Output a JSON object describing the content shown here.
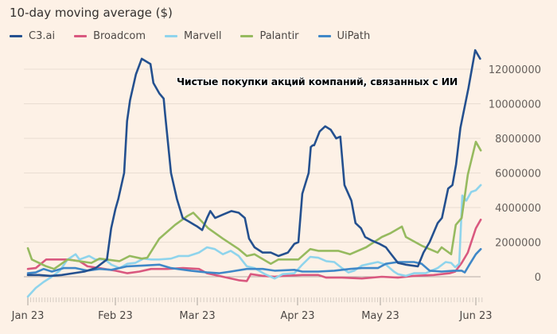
{
  "chart_data": {
    "type": "line",
    "title": "10-day moving average ($)",
    "annotation": "Чистые покупки акций компаний, связанных с ИИ",
    "xlabel": "",
    "ylabel": "",
    "x_unit": "days since Jan 1 2023",
    "x_ticks": [
      {
        "label": "Jan 23",
        "day": 0
      },
      {
        "label": "Feb 23",
        "day": 31
      },
      {
        "label": "Mar 23",
        "day": 59
      },
      {
        "label": "Apr 23",
        "day": 90
      },
      {
        "label": "May 23",
        "day": 120
      },
      {
        "label": "Jun 23",
        "day": 151
      }
    ],
    "y_ticks": [
      0,
      2000000,
      4000000,
      6000000,
      8000000,
      10000000,
      12000000
    ],
    "y_tick_labels": [
      "0",
      "2000000",
      "4000000",
      "6000000",
      "8000000",
      "10000000",
      "12000000"
    ],
    "ylim": [
      -1400000,
      13300000
    ],
    "grid": true,
    "legend_position": "top-left",
    "series": [
      {
        "name": "C3.ai",
        "color": "#24508f",
        "points": [
          [
            0,
            0.1
          ],
          [
            4,
            0.1
          ],
          [
            8,
            0.05
          ],
          [
            12,
            0.1
          ],
          [
            16,
            0.2
          ],
          [
            20,
            0.3
          ],
          [
            24,
            0.5
          ],
          [
            28,
            1.0
          ],
          [
            29.5,
            2.8
          ],
          [
            31,
            3.9
          ],
          [
            32,
            4.5
          ],
          [
            34,
            6.0
          ],
          [
            35,
            9.0
          ],
          [
            36,
            10.2
          ],
          [
            38,
            11.7
          ],
          [
            40,
            12.6
          ],
          [
            43,
            12.3
          ],
          [
            44,
            11.2
          ],
          [
            46,
            10.6
          ],
          [
            47.5,
            10.3
          ],
          [
            48,
            9.4
          ],
          [
            50,
            6.0
          ],
          [
            52,
            4.5
          ],
          [
            54,
            3.4
          ],
          [
            56,
            3.2
          ],
          [
            58,
            3.0
          ],
          [
            59,
            2.9
          ],
          [
            60.5,
            2.7
          ],
          [
            62,
            3.4
          ],
          [
            63,
            3.8
          ],
          [
            64.5,
            3.4
          ],
          [
            67,
            3.6
          ],
          [
            69.5,
            3.8
          ],
          [
            71.8,
            3.7
          ],
          [
            73.7,
            3.4
          ],
          [
            75,
            2.2
          ],
          [
            76.7,
            1.7
          ],
          [
            79.2,
            1.4
          ],
          [
            81.7,
            1.4
          ],
          [
            84.1,
            1.2
          ],
          [
            87,
            1.4
          ],
          [
            89,
            1.9
          ],
          [
            90.3,
            2.0
          ],
          [
            91.7,
            4.8
          ],
          [
            94,
            6.0
          ],
          [
            94.8,
            7.5
          ],
          [
            96,
            7.6
          ],
          [
            98,
            8.4
          ],
          [
            95.5,
            7.6
          ],
          [
            100,
            8.7
          ],
          [
            102,
            8.5
          ],
          [
            104,
            8.0
          ],
          [
            105.5,
            8.1
          ],
          [
            107,
            5.3
          ],
          [
            109.5,
            4.4
          ],
          [
            111,
            3.1
          ],
          [
            113,
            2.8
          ],
          [
            114.5,
            2.3
          ],
          [
            116.8,
            2.1
          ],
          [
            119.7,
            1.9
          ],
          [
            121.8,
            1.7
          ],
          [
            123.1,
            1.4
          ],
          [
            125.7,
            0.8
          ],
          [
            128.3,
            0.7
          ],
          [
            132.2,
            0.6
          ],
          [
            134,
            1.4
          ],
          [
            136,
            2.0
          ],
          [
            138.6,
            3.1
          ],
          [
            140,
            3.4
          ],
          [
            142,
            5.1
          ],
          [
            143.4,
            5.3
          ],
          [
            144.6,
            6.5
          ],
          [
            146,
            8.6
          ],
          [
            148.6,
            10.9
          ],
          [
            150.8,
            13.1
          ],
          [
            152.4,
            12.6
          ]
        ]
      },
      {
        "name": "Broadcom",
        "color": "#d9587f",
        "points": [
          [
            0,
            0.45
          ],
          [
            2.8,
            0.5
          ],
          [
            6.5,
            1.0
          ],
          [
            9.9,
            1.0
          ],
          [
            14.1,
            1.0
          ],
          [
            18.3,
            0.9
          ],
          [
            21.1,
            0.6
          ],
          [
            25.4,
            0.5
          ],
          [
            31,
            0.35
          ],
          [
            35.1,
            0.2
          ],
          [
            39.2,
            0.3
          ],
          [
            43.2,
            0.45
          ],
          [
            48.7,
            0.45
          ],
          [
            54.1,
            0.5
          ],
          [
            59.5,
            0.45
          ],
          [
            62,
            0.2
          ],
          [
            66.9,
            0.0
          ],
          [
            71.8,
            -0.2
          ],
          [
            74.3,
            -0.25
          ],
          [
            75.5,
            0.15
          ],
          [
            79.2,
            0.05
          ],
          [
            82.9,
            0.0
          ],
          [
            85.4,
            0.05
          ],
          [
            91.7,
            0.1
          ],
          [
            97.5,
            0.1
          ],
          [
            100.4,
            -0.05
          ],
          [
            106.1,
            -0.05
          ],
          [
            113.3,
            -0.1
          ],
          [
            120.5,
            0.0
          ],
          [
            125.7,
            -0.05
          ],
          [
            130.9,
            0.05
          ],
          [
            137.3,
            0.1
          ],
          [
            142.5,
            0.2
          ],
          [
            144.3,
            0.3
          ],
          [
            146.4,
            0.8
          ],
          [
            148.4,
            1.4
          ],
          [
            151,
            2.8
          ],
          [
            152.6,
            3.3
          ]
        ]
      },
      {
        "name": "Marvell",
        "color": "#8fd4ec",
        "points": [
          [
            0,
            -1.15
          ],
          [
            2.8,
            -0.65
          ],
          [
            5.6,
            -0.3
          ],
          [
            8.5,
            0.0
          ],
          [
            11.3,
            0.35
          ],
          [
            14.1,
            1.0
          ],
          [
            16.9,
            1.3
          ],
          [
            18.3,
            1.0
          ],
          [
            21.7,
            1.2
          ],
          [
            23.9,
            1.0
          ],
          [
            27.3,
            1.0
          ],
          [
            29.6,
            0.7
          ],
          [
            32.4,
            0.5
          ],
          [
            35.1,
            0.75
          ],
          [
            37.8,
            0.8
          ],
          [
            40.6,
            1.05
          ],
          [
            43.2,
            1.0
          ],
          [
            45.9,
            1.0
          ],
          [
            50,
            1.05
          ],
          [
            52.7,
            1.2
          ],
          [
            56,
            1.2
          ],
          [
            59.5,
            1.4
          ],
          [
            62,
            1.7
          ],
          [
            64.4,
            1.6
          ],
          [
            66.9,
            1.3
          ],
          [
            69.3,
            1.5
          ],
          [
            71.8,
            1.2
          ],
          [
            74.3,
            0.6
          ],
          [
            76.7,
            0.5
          ],
          [
            79.9,
            0.15
          ],
          [
            82.9,
            -0.1
          ],
          [
            85.4,
            0.15
          ],
          [
            89,
            0.2
          ],
          [
            91.7,
            0.7
          ],
          [
            94.6,
            1.15
          ],
          [
            97.5,
            1.1
          ],
          [
            100.4,
            0.9
          ],
          [
            103.3,
            0.85
          ],
          [
            106.1,
            0.5
          ],
          [
            108.4,
            0.25
          ],
          [
            110.5,
            0.35
          ],
          [
            113.3,
            0.65
          ],
          [
            116.2,
            0.75
          ],
          [
            119.1,
            0.85
          ],
          [
            121.8,
            0.7
          ],
          [
            124.4,
            0.3
          ],
          [
            125.7,
            0.15
          ],
          [
            128.3,
            0.05
          ],
          [
            130.9,
            0.2
          ],
          [
            134.7,
            0.2
          ],
          [
            138.6,
            0.5
          ],
          [
            141.2,
            0.85
          ],
          [
            143,
            0.8
          ],
          [
            144.3,
            0.55
          ],
          [
            145.6,
            0.75
          ],
          [
            146.6,
            4.7
          ],
          [
            147.9,
            4.4
          ],
          [
            149.5,
            4.9
          ],
          [
            151,
            5.0
          ],
          [
            152.6,
            5.3
          ]
        ]
      },
      {
        "name": "Palantir",
        "color": "#96ba5f",
        "points": [
          [
            0,
            1.65
          ],
          [
            1.4,
            1.0
          ],
          [
            6.5,
            0.6
          ],
          [
            9.3,
            0.45
          ],
          [
            14.1,
            1.0
          ],
          [
            22.5,
            0.8
          ],
          [
            25.4,
            1.05
          ],
          [
            32.4,
            0.9
          ],
          [
            35.9,
            1.2
          ],
          [
            40,
            1.05
          ],
          [
            41.9,
            1.1
          ],
          [
            46,
            2.2
          ],
          [
            51.4,
            3.0
          ],
          [
            55.5,
            3.5
          ],
          [
            57.6,
            3.7
          ],
          [
            62.4,
            2.8
          ],
          [
            66.9,
            2.2
          ],
          [
            71.8,
            1.6
          ],
          [
            74.3,
            1.2
          ],
          [
            76.7,
            1.3
          ],
          [
            81.7,
            0.75
          ],
          [
            84.1,
            1.0
          ],
          [
            90.3,
            1.0
          ],
          [
            94.6,
            1.6
          ],
          [
            97.5,
            1.5
          ],
          [
            104.7,
            1.5
          ],
          [
            109,
            1.3
          ],
          [
            114.8,
            1.7
          ],
          [
            120.5,
            2.3
          ],
          [
            123.1,
            2.5
          ],
          [
            127,
            2.9
          ],
          [
            128.3,
            2.3
          ],
          [
            133.4,
            1.8
          ],
          [
            138.6,
            1.4
          ],
          [
            139.9,
            1.7
          ],
          [
            143,
            1.3
          ],
          [
            144.5,
            3.0
          ],
          [
            146.4,
            3.4
          ],
          [
            148.4,
            5.9
          ],
          [
            151,
            7.8
          ],
          [
            152.6,
            7.3
          ]
        ]
      },
      {
        "name": "UiPath",
        "color": "#3f87c7",
        "points": [
          [
            0,
            0.2
          ],
          [
            2.8,
            0.25
          ],
          [
            5.6,
            0.45
          ],
          [
            8.5,
            0.3
          ],
          [
            12.7,
            0.5
          ],
          [
            16.9,
            0.5
          ],
          [
            21.1,
            0.35
          ],
          [
            25.4,
            0.45
          ],
          [
            29.6,
            0.4
          ],
          [
            35.1,
            0.6
          ],
          [
            40.5,
            0.65
          ],
          [
            46,
            0.7
          ],
          [
            50,
            0.5
          ],
          [
            56.8,
            0.35
          ],
          [
            62,
            0.25
          ],
          [
            65.7,
            0.2
          ],
          [
            69.3,
            0.3
          ],
          [
            74.3,
            0.45
          ],
          [
            79.2,
            0.45
          ],
          [
            82.9,
            0.35
          ],
          [
            89,
            0.4
          ],
          [
            91.7,
            0.3
          ],
          [
            97.5,
            0.3
          ],
          [
            103.3,
            0.35
          ],
          [
            109,
            0.45
          ],
          [
            113.3,
            0.5
          ],
          [
            119.1,
            0.5
          ],
          [
            121.8,
            0.75
          ],
          [
            125.7,
            0.85
          ],
          [
            130.9,
            0.85
          ],
          [
            133.4,
            0.75
          ],
          [
            136,
            0.35
          ],
          [
            139.9,
            0.3
          ],
          [
            143.8,
            0.35
          ],
          [
            146.4,
            0.35
          ],
          [
            147.4,
            0.25
          ],
          [
            148.9,
            0.7
          ],
          [
            151,
            1.3
          ],
          [
            152.6,
            1.6
          ]
        ]
      }
    ],
    "value_multiplier": 1000000
  }
}
